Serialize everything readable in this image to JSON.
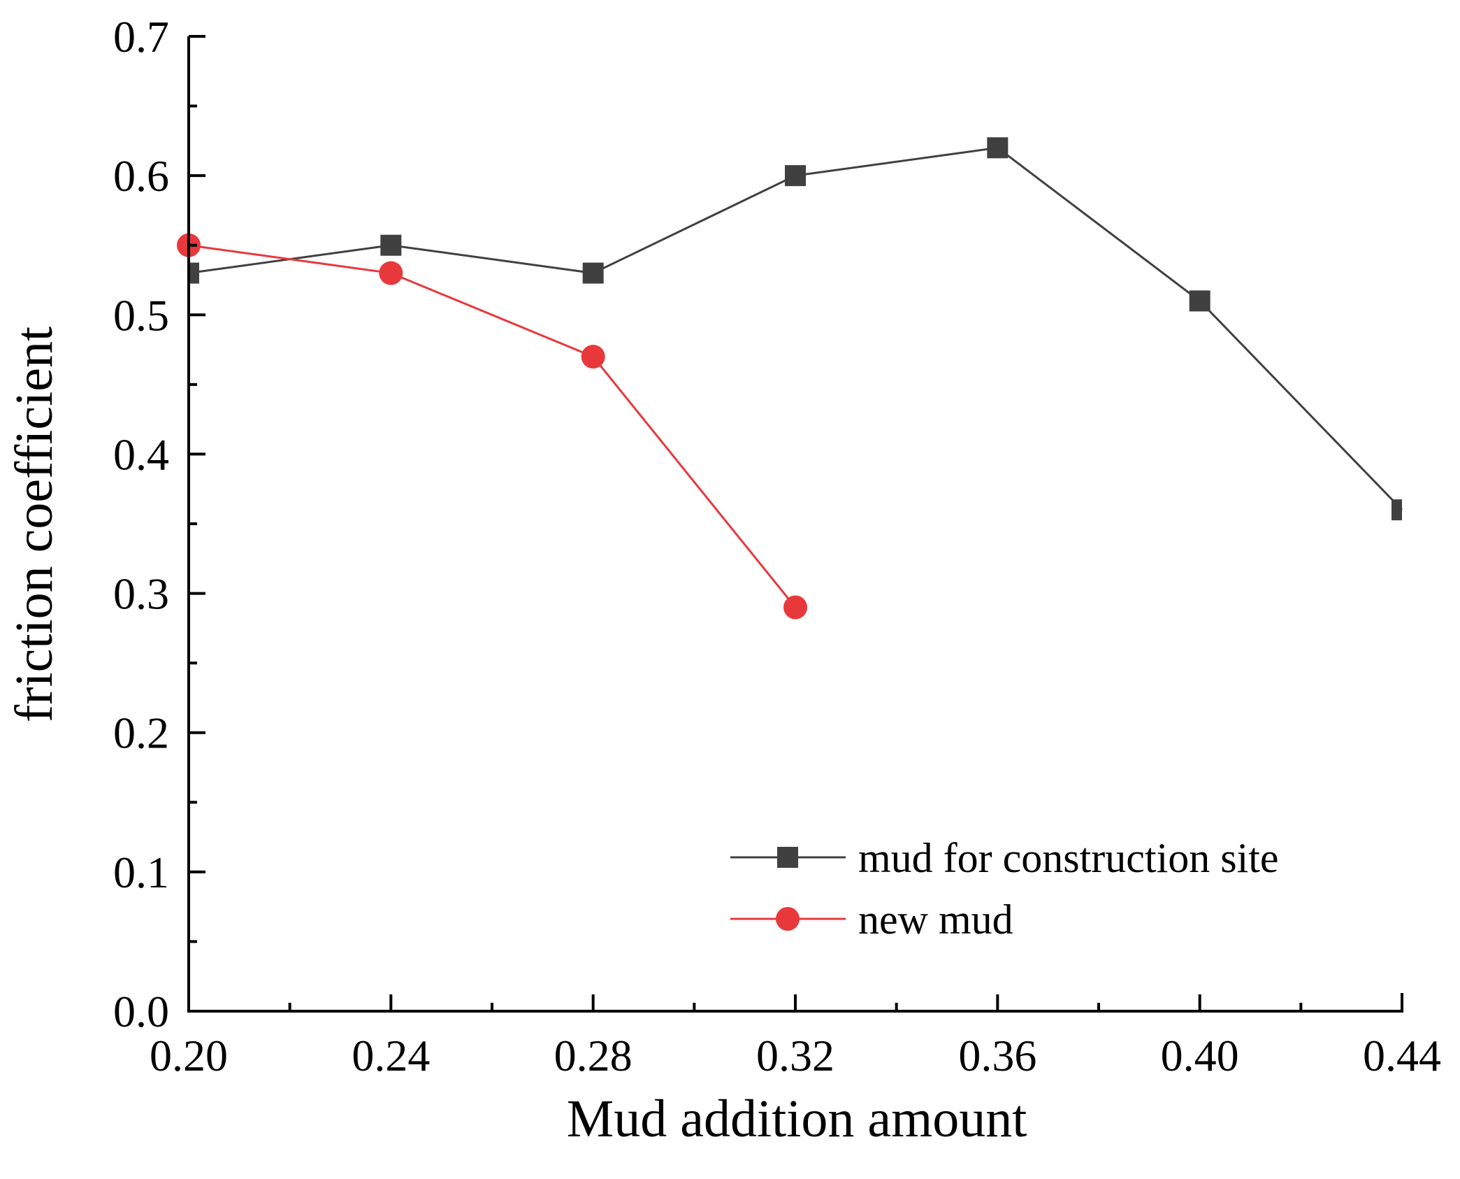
{
  "chart_data": {
    "type": "line",
    "title": "",
    "xlabel": "Mud addition amount",
    "ylabel": "friction coefficient",
    "xlim": [
      0.2,
      0.44
    ],
    "ylim": [
      0.0,
      0.7
    ],
    "x_ticks": [
      "0.20",
      "0.24",
      "0.28",
      "0.32",
      "0.36",
      "0.40",
      "0.44"
    ],
    "y_ticks": [
      "0.0",
      "0.1",
      "0.2",
      "0.3",
      "0.4",
      "0.5",
      "0.6",
      "0.7"
    ],
    "grid": false,
    "legend_position": "bottom-right",
    "series": [
      {
        "name": "mud for construction site",
        "color": "#404040",
        "marker": "square",
        "x": [
          0.2,
          0.24,
          0.28,
          0.32,
          0.36,
          0.4,
          0.44
        ],
        "values": [
          0.53,
          0.55,
          0.53,
          0.6,
          0.62,
          0.51,
          0.36
        ]
      },
      {
        "name": "new mud",
        "color": "#e8383c",
        "marker": "circle",
        "x": [
          0.2,
          0.24,
          0.28,
          0.32
        ],
        "values": [
          0.55,
          0.53,
          0.47,
          0.29
        ]
      }
    ]
  }
}
